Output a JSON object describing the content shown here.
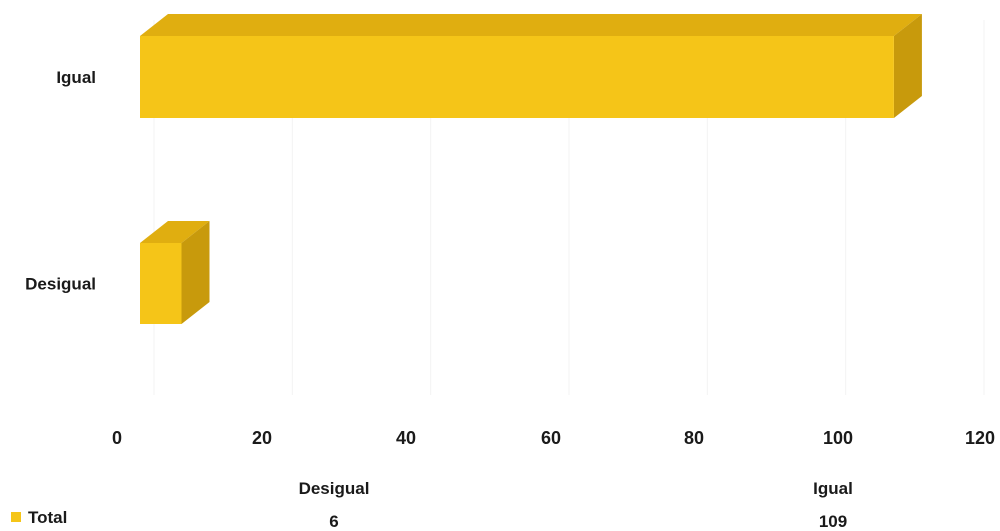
{
  "chart_data": {
    "type": "bar",
    "orientation": "horizontal",
    "style": "3d",
    "categories": [
      "Desigual",
      "Igual"
    ],
    "series": [
      {
        "name": "Total",
        "values": [
          6,
          109
        ],
        "color": "#F5C518"
      }
    ],
    "xlim": [
      0,
      120
    ],
    "xticks": [
      0,
      20,
      40,
      60,
      80,
      100,
      120
    ],
    "grid": true,
    "legend": "bottom-left",
    "data_table": {
      "columns": [
        "Desigual",
        "Igual"
      ],
      "rows": [
        {
          "label": "Total",
          "values": [
            "6",
            "109"
          ]
        }
      ]
    }
  }
}
